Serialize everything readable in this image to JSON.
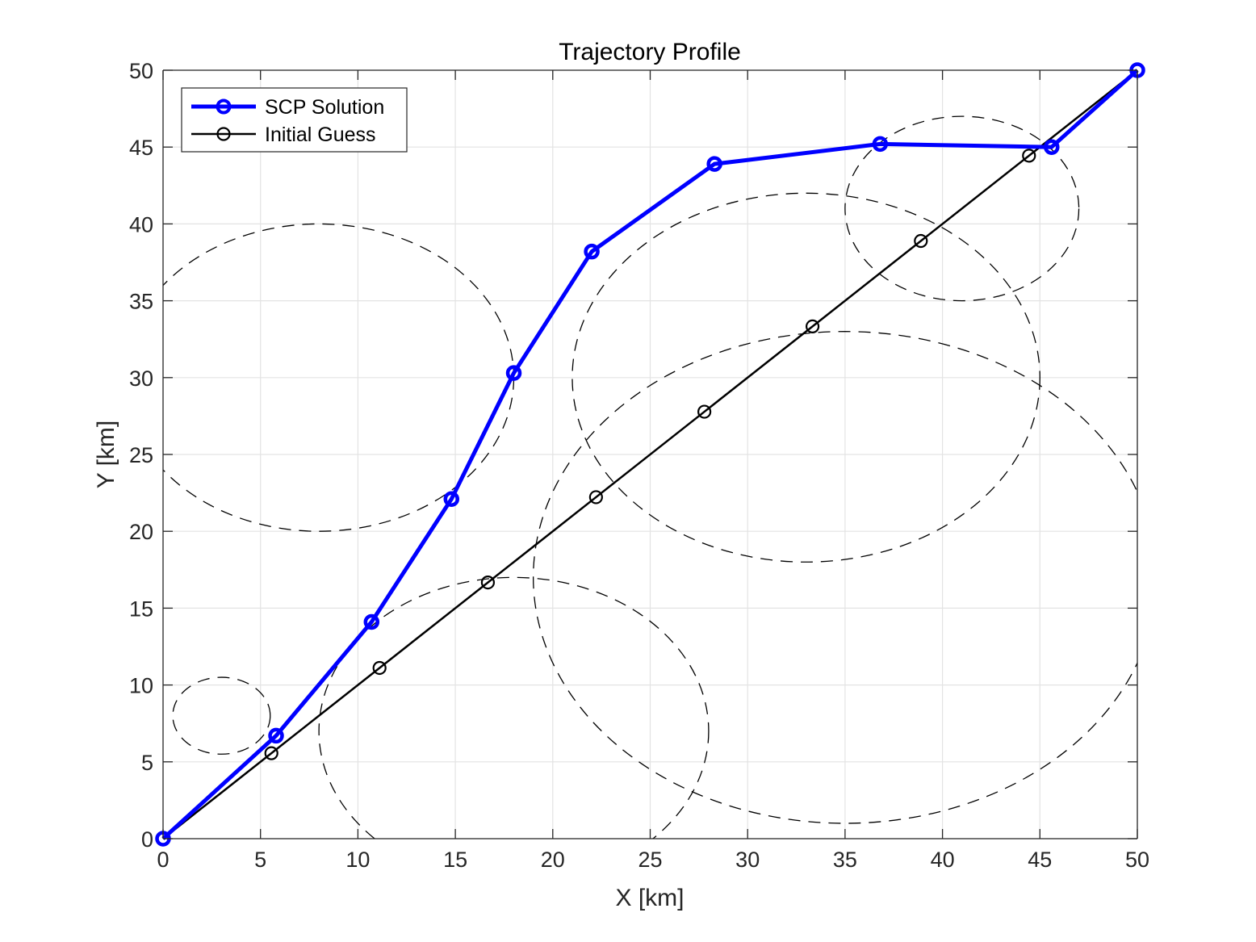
{
  "chart_data": {
    "type": "line",
    "title": "Trajectory Profile",
    "xlabel": "X [km]",
    "ylabel": "Y [km]",
    "xlim": [
      0,
      50
    ],
    "ylim": [
      0,
      50
    ],
    "xticks": [
      0,
      5,
      10,
      15,
      20,
      25,
      30,
      35,
      40,
      45,
      50
    ],
    "yticks": [
      0,
      5,
      10,
      15,
      20,
      25,
      30,
      35,
      40,
      45,
      50
    ],
    "grid": true,
    "legend_position": "top-left",
    "series": [
      {
        "name": "SCP Solution",
        "color": "#0000ff",
        "marker": "circle",
        "line_style": "solid",
        "points": [
          [
            0,
            0
          ],
          [
            5.8,
            6.7
          ],
          [
            10.7,
            14.1
          ],
          [
            14.8,
            22.1
          ],
          [
            18.0,
            30.3
          ],
          [
            22.0,
            38.2
          ],
          [
            28.3,
            43.9
          ],
          [
            36.8,
            45.2
          ],
          [
            45.6,
            45.0
          ],
          [
            50,
            50
          ]
        ]
      },
      {
        "name": "Initial Guess",
        "color": "#000000",
        "marker": "circle",
        "line_style": "solid",
        "points": [
          [
            0,
            0
          ],
          [
            5.56,
            5.56
          ],
          [
            11.11,
            11.11
          ],
          [
            16.67,
            16.67
          ],
          [
            22.22,
            22.22
          ],
          [
            27.78,
            27.78
          ],
          [
            33.33,
            33.33
          ],
          [
            38.89,
            38.89
          ],
          [
            44.44,
            44.44
          ],
          [
            50,
            50
          ]
        ]
      }
    ],
    "obstacles": [
      {
        "cx": 8,
        "cy": 30,
        "rx": 10,
        "ry": 10,
        "style": "dashed"
      },
      {
        "cx": 3,
        "cy": 8,
        "rx": 2.5,
        "ry": 2.5,
        "style": "dashed"
      },
      {
        "cx": 18,
        "cy": 7,
        "rx": 10,
        "ry": 10,
        "style": "dashed"
      },
      {
        "cx": 33,
        "cy": 30,
        "rx": 12,
        "ry": 12,
        "style": "dashed"
      },
      {
        "cx": 41,
        "cy": 41,
        "rx": 6,
        "ry": 6,
        "style": "dashed"
      },
      {
        "cx": 35,
        "cy": 17,
        "rx": 16,
        "ry": 16,
        "style": "dashed"
      }
    ]
  }
}
